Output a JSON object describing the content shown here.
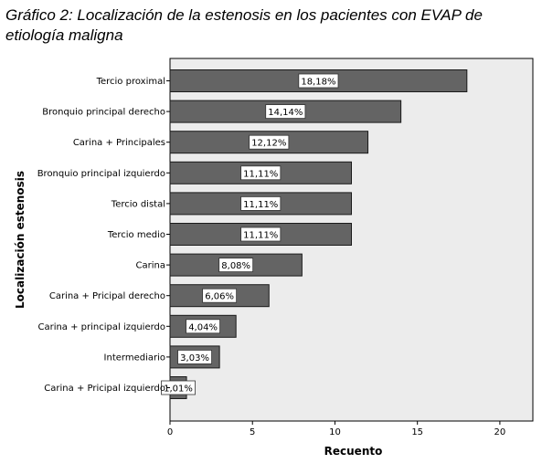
{
  "title": "Gráfico 2: Localización de la estenosis en los pacientes con EVAP de etiología maligna",
  "chart_data": {
    "type": "bar",
    "orientation": "horizontal",
    "xlabel": "Recuento",
    "ylabel": "Localización estenosis",
    "xlim": [
      0,
      22
    ],
    "xticks": [
      0,
      5,
      10,
      15,
      20
    ],
    "grid": false,
    "categories": [
      "Tercio proximal",
      "Bronquio principal derecho",
      "Carina + Principales",
      "Bronquio principal izquierdo",
      "Tercio distal",
      "Tercio medio",
      "Carina",
      "Carina + Pricipal derecho",
      "Carina + principal izquierdo",
      "Intermediario",
      "Carina + Pricipal izquierdo"
    ],
    "values": [
      18,
      14,
      12,
      11,
      11,
      11,
      8,
      6,
      4,
      3,
      1
    ],
    "data_labels": [
      "18,18%",
      "14,14%",
      "12,12%",
      "11,11%",
      "11,11%",
      "11,11%",
      "8,08%",
      "6,06%",
      "4,04%",
      "3,03%",
      "1,01%"
    ],
    "colors": {
      "bar": "#646464",
      "bar_stroke": "#1a1a1a",
      "plot_background": "#ececec",
      "label_box": "#ffffff"
    }
  }
}
